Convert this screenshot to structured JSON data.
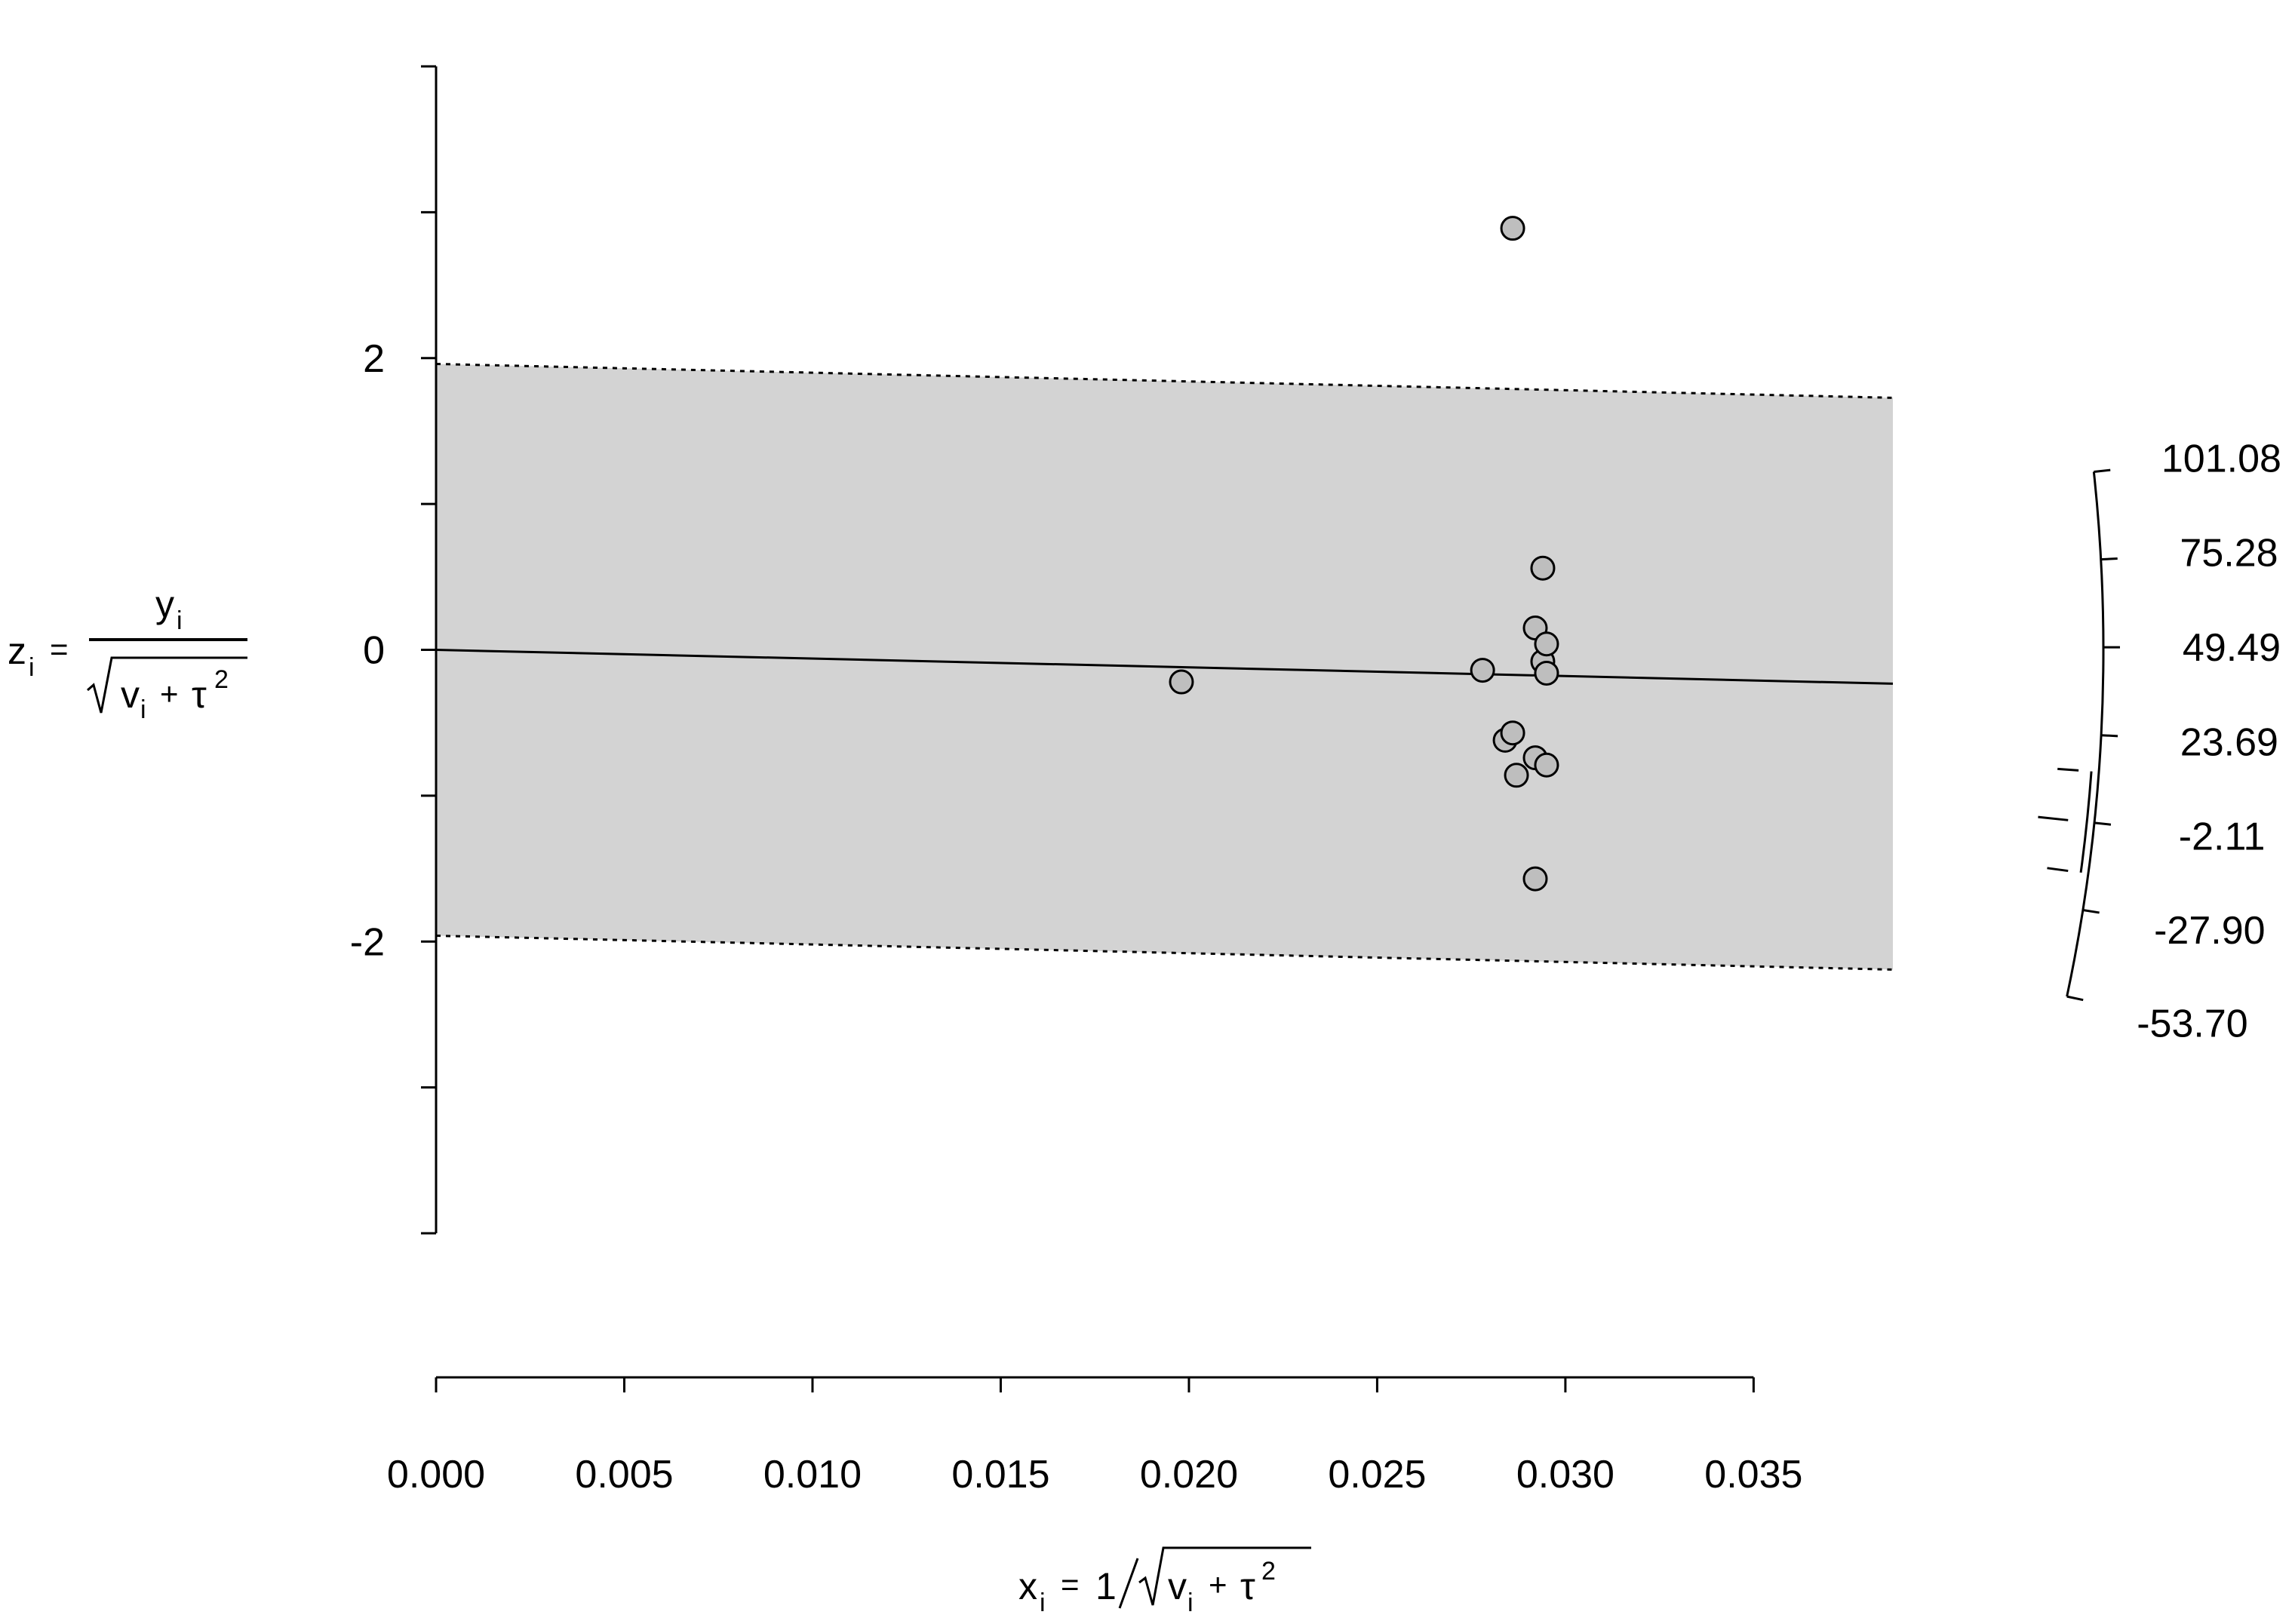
{
  "chart_data": {
    "type": "scatter",
    "title": "",
    "xlabel": "x_i = 1/sqrt(v_i + τ²)",
    "ylabel": "z_i = y_i / sqrt(v_i + τ²)",
    "xlabel_parts": {
      "lhs": "x",
      "sub": "i",
      "eq": "=",
      "num": "1",
      "rad": "v",
      "rad_sub": "i",
      "plus": "+",
      "tau": "τ",
      "sup": "2"
    },
    "ylabel_parts": {
      "lhs": "z",
      "sub": "i",
      "eq": "=",
      "num": "y",
      "num_sub": "i",
      "rad": "v",
      "rad_sub": "i",
      "plus": "+",
      "tau": "τ",
      "sup": "2"
    },
    "xlim": [
      0,
      0.0387
    ],
    "ylim": [
      -4,
      4
    ],
    "x_ticks": [
      0.0,
      0.005,
      0.01,
      0.015,
      0.02,
      0.025,
      0.03,
      0.035
    ],
    "x_tick_labels": [
      "0.000",
      "0.005",
      "0.010",
      "0.015",
      "0.020",
      "0.025",
      "0.030",
      "0.035"
    ],
    "y_ticks": [
      -4,
      -3,
      -2,
      -1,
      0,
      1,
      2,
      3,
      4
    ],
    "y_tick_labels": [
      {
        "value": 2,
        "label": "2"
      },
      {
        "value": 0,
        "label": "0"
      },
      {
        "value": -2,
        "label": "-2"
      }
    ],
    "regression_line": {
      "slope": -6.0,
      "intercept": 0
    },
    "confidence_band": {
      "halfwidth": 1.96
    },
    "points": [
      {
        "x": 0.0198,
        "y": -0.22
      },
      {
        "x": 0.0278,
        "y": -0.14
      },
      {
        "x": 0.0284,
        "y": -0.62
      },
      {
        "x": 0.0286,
        "y": -0.57
      },
      {
        "x": 0.0287,
        "y": -0.86
      },
      {
        "x": 0.0286,
        "y": 2.89
      },
      {
        "x": 0.0292,
        "y": 0.15
      },
      {
        "x": 0.0294,
        "y": -0.08
      },
      {
        "x": 0.0295,
        "y": 0.04
      },
      {
        "x": 0.0295,
        "y": -0.16
      },
      {
        "x": 0.0294,
        "y": 0.56
      },
      {
        "x": 0.0292,
        "y": -0.74
      },
      {
        "x": 0.0295,
        "y": -0.79
      },
      {
        "x": 0.0292,
        "y": -1.57
      }
    ],
    "radial_scale": {
      "tick_labels": [
        "101.08",
        "75.28",
        "49.49",
        "23.69",
        "-2.11",
        "-27.90",
        "-53.70"
      ],
      "estimate": -2.11,
      "ci": [
        -17.1,
        12.9
      ]
    }
  }
}
